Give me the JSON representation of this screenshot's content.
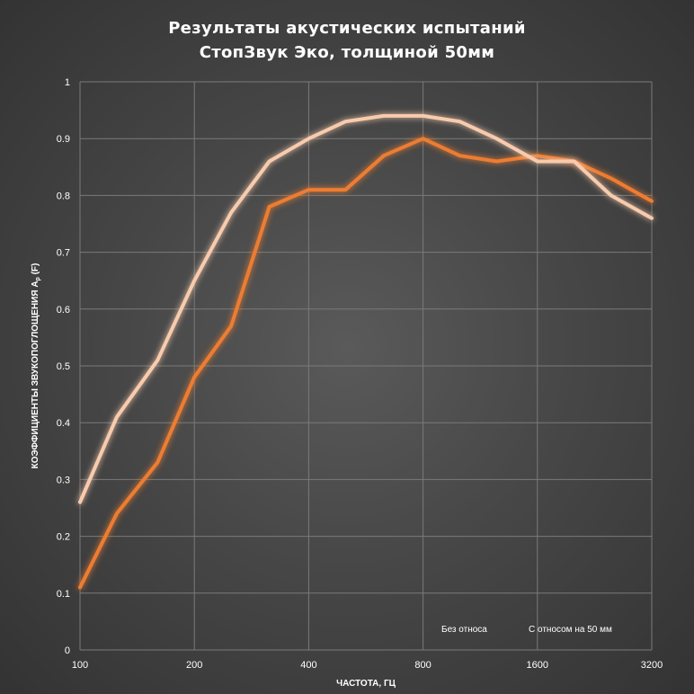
{
  "chart_data": {
    "type": "line",
    "title_line1": "Результаты акустических испытаний",
    "title_line2": "СтопЗвук Эко, толщиной 50мм",
    "xlabel": "ЧАСТОТА, ГЦ",
    "ylabel": "КОЭФФИЦИЕНТЫ ЗВУКОПОГЛОЩЕНИЯ A",
    "ylabel_sub": "p",
    "ylabel_suffix": " (F)",
    "x_scale": "log2",
    "x": [
      100,
      125,
      160,
      200,
      250,
      315,
      400,
      500,
      630,
      800,
      1000,
      1250,
      1600,
      2000,
      2500,
      3200
    ],
    "x_ticks": [
      100,
      200,
      400,
      800,
      1600,
      3200
    ],
    "x_tick_labels": [
      "100",
      "200",
      "400",
      "800",
      "1600",
      "3200"
    ],
    "ylim": [
      0,
      1
    ],
    "y_ticks": [
      0,
      0.1,
      0.2,
      0.3,
      0.4,
      0.5,
      0.6,
      0.7,
      0.8,
      0.9,
      1
    ],
    "y_tick_labels": [
      "0",
      "0.1",
      "0.2",
      "0.3",
      "0.4",
      "0.5",
      "0.6",
      "0.7",
      "0.8",
      "0.9",
      "1"
    ],
    "grid": true,
    "legend_position": "bottom-right",
    "series": [
      {
        "name": "Без относа",
        "color": "#ED7D31",
        "values": [
          0.11,
          0.24,
          0.33,
          0.48,
          0.57,
          0.78,
          0.81,
          0.81,
          0.87,
          0.9,
          0.87,
          0.86,
          0.87,
          0.86,
          0.83,
          0.79
        ]
      },
      {
        "name": "С относом на 50 мм",
        "color": "#F8CBAD",
        "values": [
          0.26,
          0.41,
          0.51,
          0.65,
          0.77,
          0.86,
          0.9,
          0.93,
          0.94,
          0.94,
          0.93,
          0.9,
          0.86,
          0.86,
          0.8,
          0.76
        ]
      }
    ]
  }
}
